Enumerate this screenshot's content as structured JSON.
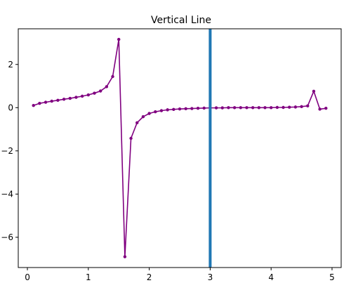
{
  "chart_data": {
    "type": "line",
    "title": "Vertical Line",
    "xlabel": "",
    "ylabel": "",
    "xlim": [
      -0.15,
      5.15
    ],
    "ylim": [
      -7.4,
      3.65
    ],
    "grid": false,
    "legend": "none",
    "x_ticks": [
      0,
      1,
      2,
      3,
      4,
      5
    ],
    "y_ticks": [
      -6,
      -4,
      -2,
      0,
      2
    ],
    "x_tick_labels": [
      "0",
      "1",
      "2",
      "3",
      "4",
      "5"
    ],
    "y_tick_labels": [
      "−6",
      "−4",
      "−2",
      "0",
      "2"
    ],
    "series": [
      {
        "color": "#800080",
        "marker": "circle",
        "x": [
          0.1,
          0.2,
          0.3,
          0.4,
          0.5,
          0.6,
          0.7,
          0.8,
          0.9,
          1.0,
          1.1,
          1.2,
          1.3,
          1.4,
          1.5,
          1.6,
          1.7,
          1.8,
          1.9,
          2.0,
          2.1,
          2.2,
          2.3,
          2.4,
          2.5,
          2.6,
          2.7,
          2.8,
          2.9,
          3.0,
          3.1,
          3.2,
          3.3,
          3.4,
          3.5,
          3.6,
          3.7,
          3.8,
          3.9,
          4.0,
          4.1,
          4.2,
          4.3,
          4.4,
          4.5,
          4.6,
          4.7,
          4.8,
          4.9
        ],
        "y": [
          0.1,
          0.2,
          0.25,
          0.3,
          0.34,
          0.39,
          0.43,
          0.48,
          0.53,
          0.59,
          0.67,
          0.77,
          0.97,
          1.44,
          3.16,
          -6.9,
          -1.42,
          -0.7,
          -0.42,
          -0.27,
          -0.19,
          -0.14,
          -0.1,
          -0.08,
          -0.06,
          -0.05,
          -0.04,
          -0.03,
          -0.02,
          -0.01,
          -0.01,
          -0.01,
          0.0,
          0.0,
          0.0,
          0.0,
          0.0,
          0.0,
          0.0,
          0.0,
          0.01,
          0.01,
          0.02,
          0.03,
          0.05,
          0.08,
          0.76,
          -0.07,
          -0.03
        ]
      }
    ],
    "vertical_line": {
      "x": 3,
      "color": "#1f77b4"
    }
  }
}
